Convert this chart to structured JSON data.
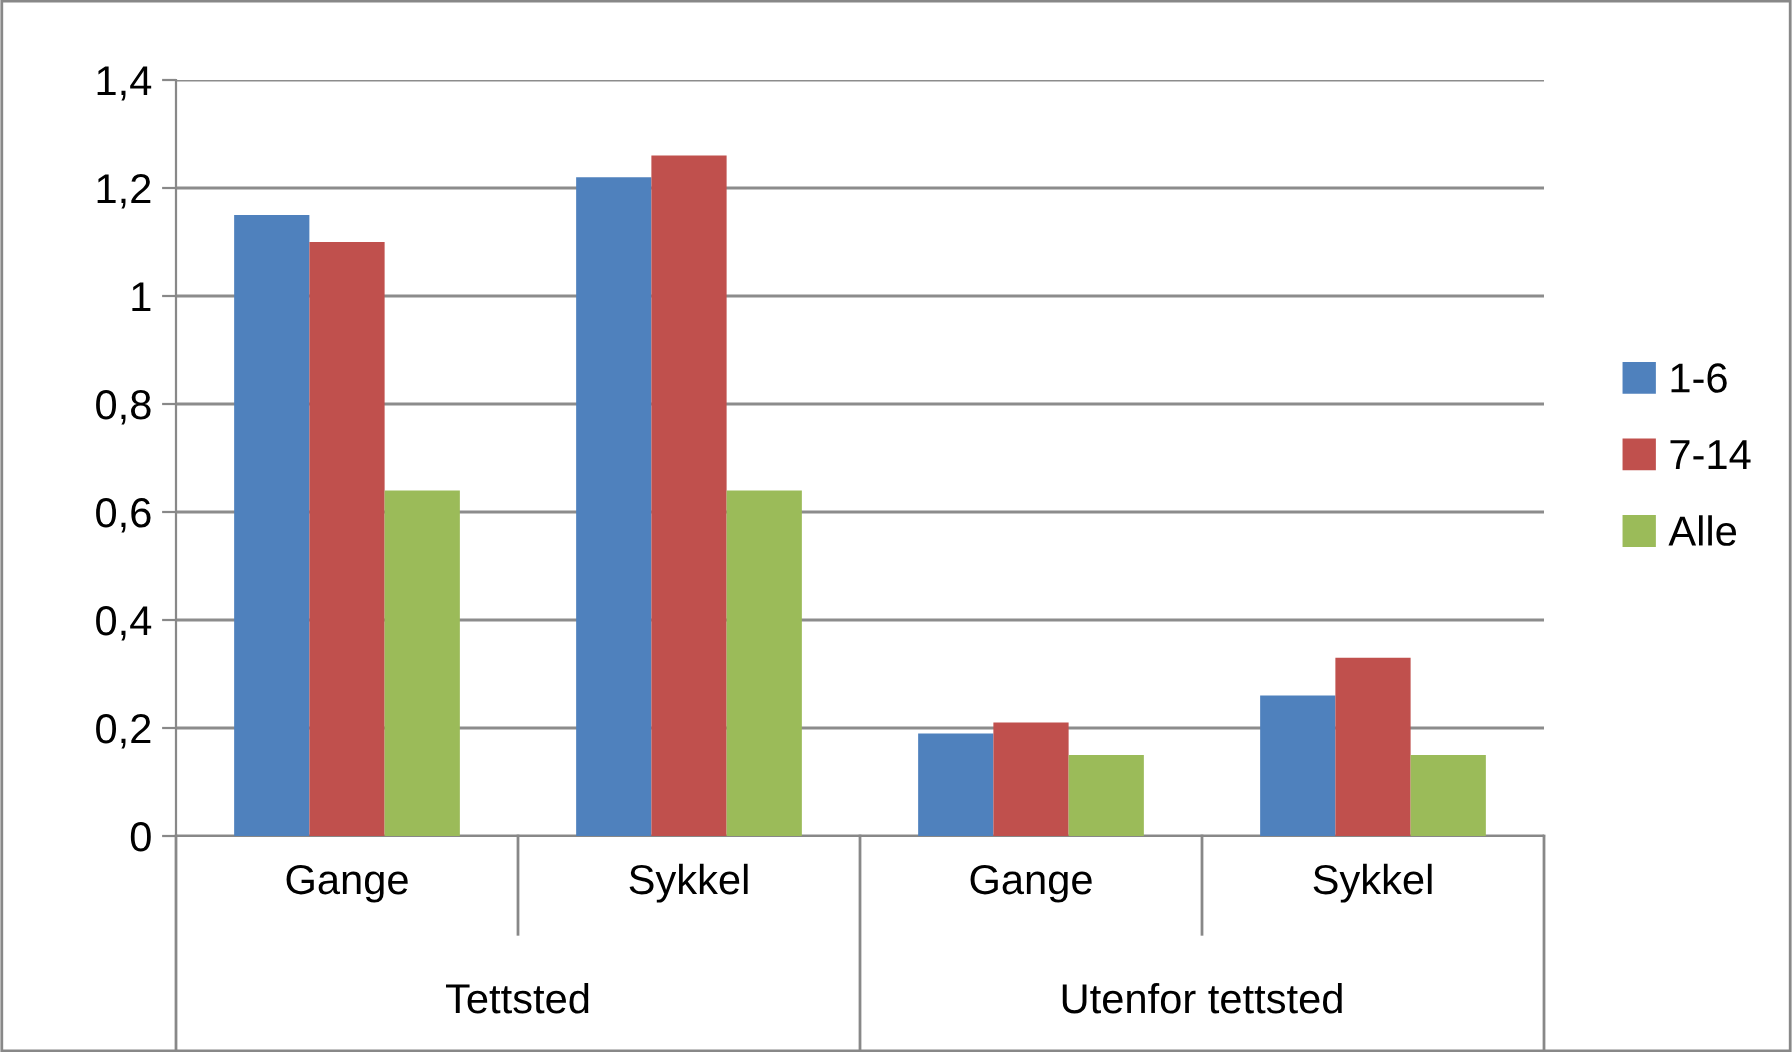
{
  "chart_data": {
    "type": "bar",
    "categories": [
      "Gange",
      "Sykkel",
      "Gange",
      "Sykkel"
    ],
    "series": [
      {
        "name": "1-6",
        "color": "#4f81bd",
        "values": [
          1.15,
          1.22,
          0.19,
          0.26
        ]
      },
      {
        "name": "7-14",
        "color": "#c0504d",
        "values": [
          1.1,
          1.26,
          0.21,
          0.33
        ]
      },
      {
        "name": "Alle",
        "color": "#9bbb59",
        "values": [
          0.64,
          0.64,
          0.15,
          0.15
        ]
      }
    ],
    "ylim": [
      0,
      1.4
    ],
    "yticks": [
      {
        "value": 0,
        "label": "0"
      },
      {
        "value": 0.2,
        "label": "0,2"
      },
      {
        "value": 0.4,
        "label": "0,4"
      },
      {
        "value": 0.6,
        "label": "0,6"
      },
      {
        "value": 0.8,
        "label": "0,8"
      },
      {
        "value": 1,
        "label": "1"
      },
      {
        "value": 1.2,
        "label": "1,2"
      },
      {
        "value": 1.4,
        "label": "1,4"
      }
    ],
    "grid": "y",
    "legend": "right",
    "annotations": [
      "Tettsted",
      "Utenfor tettsted"
    ]
  }
}
